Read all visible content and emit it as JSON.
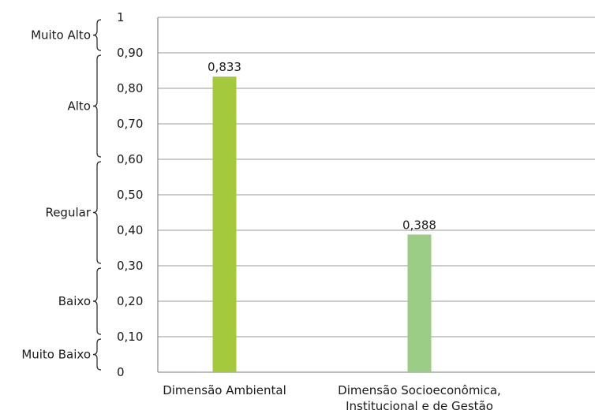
{
  "chart_data": {
    "type": "bar",
    "categories": [
      "Dimensão Ambiental",
      "Dimensão Socioeconômica, Institucional e de Gestão"
    ],
    "values": [
      0.833,
      0.388
    ],
    "value_labels": [
      "0,833",
      "0,388"
    ],
    "colors": [
      "#a5c93c",
      "#9ccd86"
    ],
    "ylim": [
      0,
      1
    ],
    "yticks": [
      0,
      0.1,
      0.2,
      0.3,
      0.4,
      0.5,
      0.6,
      0.7,
      0.8,
      0.9,
      1
    ],
    "ytick_labels": [
      "0",
      "0,10",
      "0,20",
      "0,30",
      "0,40",
      "0,50",
      "0,60",
      "0,70",
      "0,80",
      "0,90",
      "1"
    ],
    "grid": true,
    "classes": [
      {
        "label": "Muito Baixo",
        "from": 0,
        "to": 0.1
      },
      {
        "label": "Baixo",
        "from": 0.1,
        "to": 0.3
      },
      {
        "label": "Regular",
        "from": 0.3,
        "to": 0.6
      },
      {
        "label": "Alto",
        "from": 0.6,
        "to": 0.9
      },
      {
        "label": "Muito Alto",
        "from": 0.9,
        "to": 1
      }
    ]
  }
}
